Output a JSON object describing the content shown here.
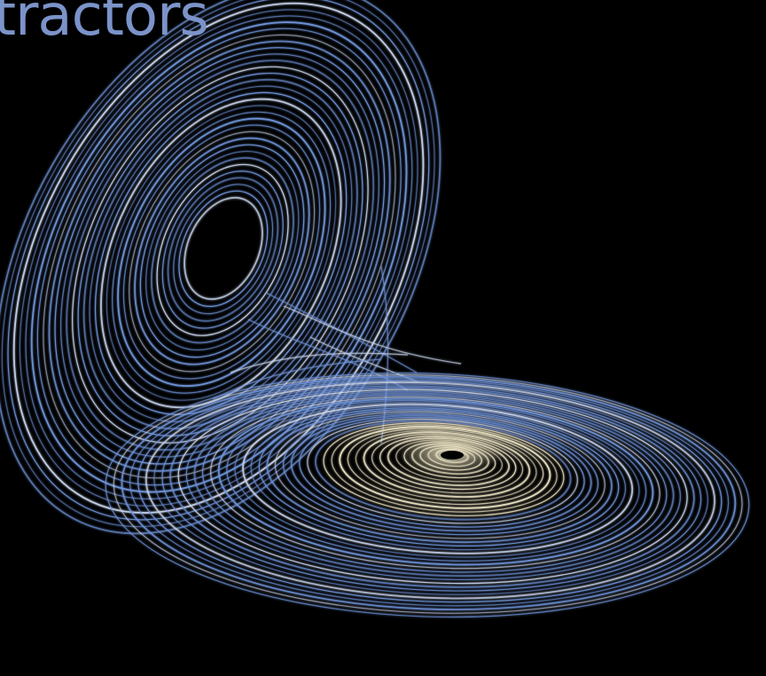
{
  "slide": {
    "title_fragment": "tractors"
  },
  "colors": {
    "background": "#000000",
    "title": "#7b93c9",
    "orbit_blue": "#6f93d8",
    "orbit_light": "#c9d6ee",
    "orbit_core": "#efe6c6"
  },
  "figure": {
    "subject": "lorenz-attractor-butterfly",
    "lobes": [
      "upper-left-lobe",
      "lower-right-lobe"
    ]
  }
}
